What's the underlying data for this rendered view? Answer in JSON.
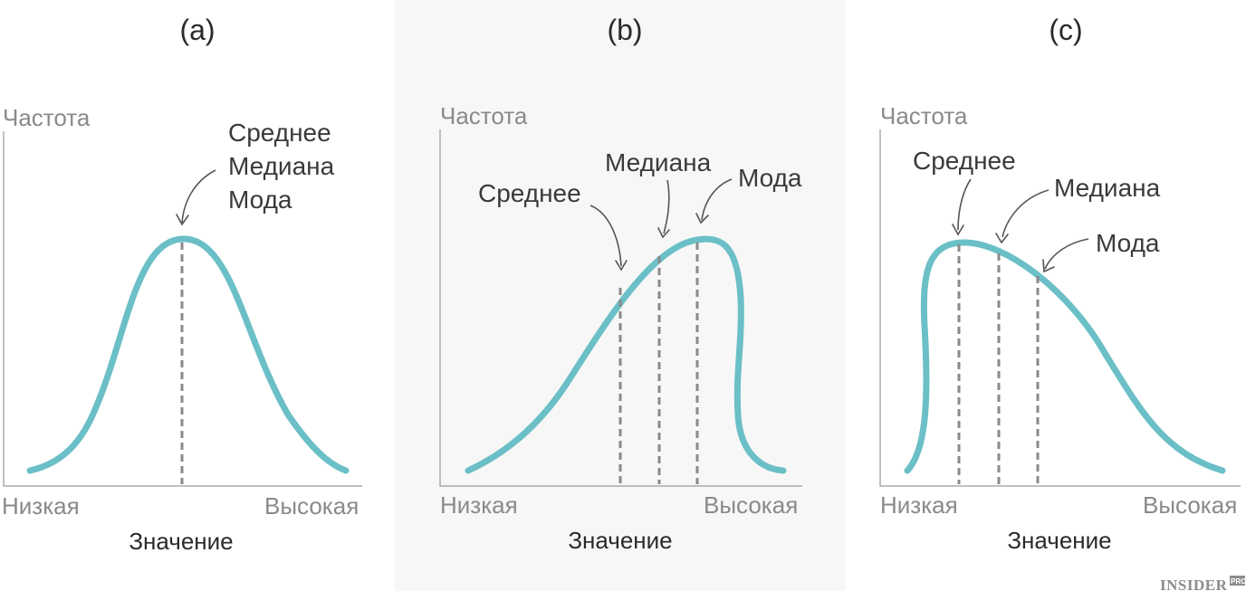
{
  "panels": [
    {
      "label": "(a)",
      "y_label": "Частота",
      "x_low": "Низкая",
      "x_high": "Высокая",
      "x_title": "Значение",
      "annotations": [
        "Среднее",
        "Медиана",
        "Мода"
      ]
    },
    {
      "label": "(b)",
      "y_label": "Частота",
      "x_low": "Низкая",
      "x_high": "Высокая",
      "x_title": "Значение",
      "annotations": [
        "Среднее",
        "Медиана",
        "Мода"
      ]
    },
    {
      "label": "(c)",
      "y_label": "Частота",
      "x_low": "Низкая",
      "x_high": "Высокая",
      "x_title": "Значение",
      "annotations": [
        "Среднее",
        "Медиана",
        "Мода"
      ]
    }
  ],
  "brand": {
    "name": "INSIDER",
    "badge": "PRO"
  },
  "colors": {
    "curve": "#6bbfc6",
    "highlight_panel_bg": "#f7f7f7",
    "marker_lines": "#8a8a8a"
  }
}
